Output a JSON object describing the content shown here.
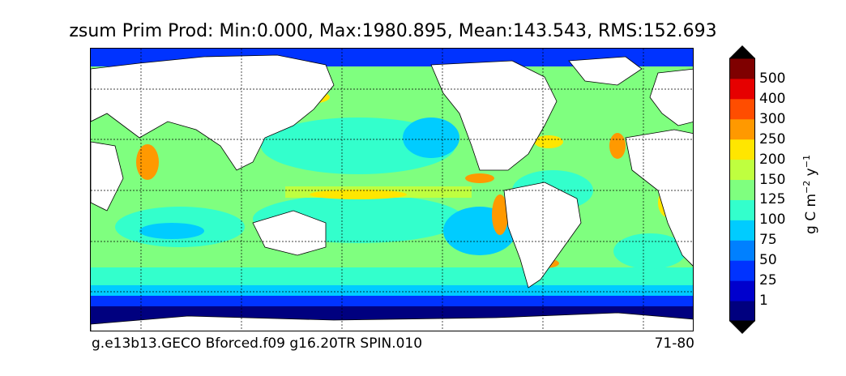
{
  "title": "zsum Prim Prod: Min:0.000, Max:1980.895, Mean:143.543, RMS:152.693",
  "footer": {
    "case_name": "g.e13b13.GECO Bforced.f09 g16.20TR SPIN.010",
    "years": "71-80"
  },
  "colorbar": {
    "label_main": "g C m",
    "label_exp1": "−2",
    "label_mid": " y",
    "label_exp2": "−1",
    "ticks": [
      "1",
      "25",
      "50",
      "75",
      "100",
      "125",
      "150",
      "200",
      "250",
      "300",
      "400",
      "500"
    ],
    "colors": [
      "#00007f",
      "#0000cd",
      "#0033ff",
      "#0080ff",
      "#00ccff",
      "#33ffcc",
      "#7fff7f",
      "#bfff3f",
      "#ffe600",
      "#ff9900",
      "#ff4d00",
      "#e60000",
      "#7f0000"
    ],
    "extend_colors": {
      "low": "#000000",
      "high": "#000000"
    }
  },
  "map": {
    "land_color": "#ffffff",
    "grid": "dashed",
    "field_levels": [
      "#00007f",
      "#0033ff",
      "#00ccff",
      "#33ffcc",
      "#7fff7f",
      "#bfff3f",
      "#ffe600",
      "#ff9900",
      "#e60000"
    ]
  }
}
